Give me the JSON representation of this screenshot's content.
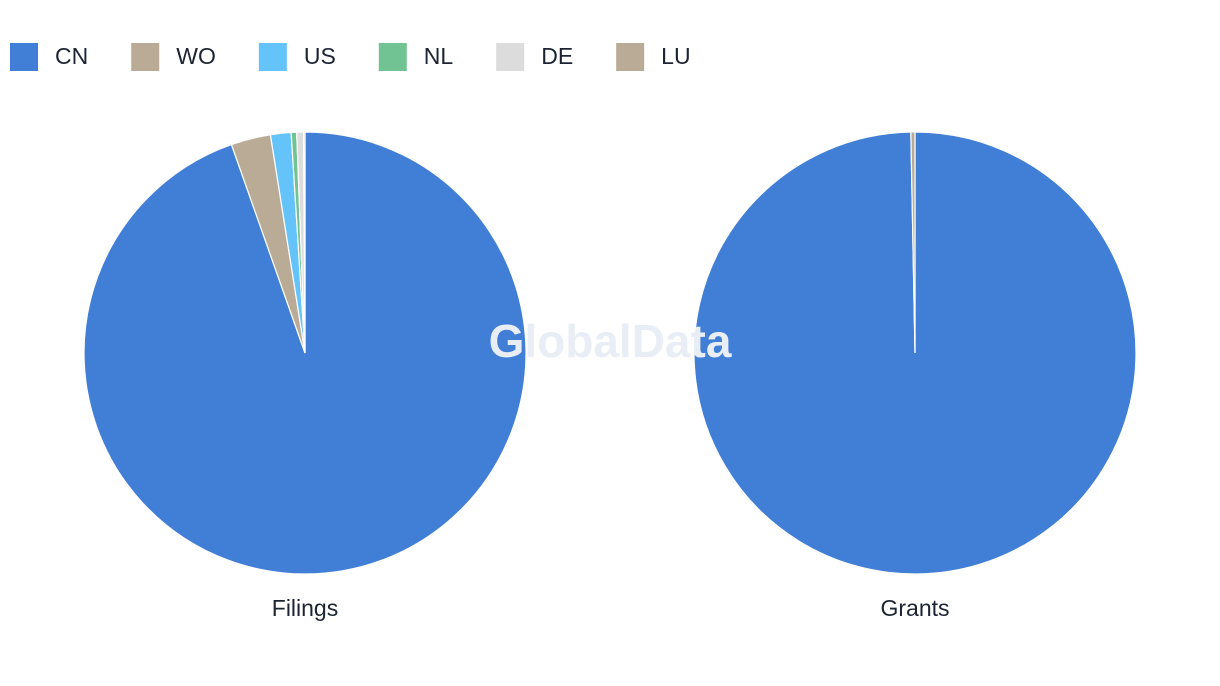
{
  "watermark": "GlobalData",
  "chart_data": [
    {
      "type": "pie",
      "title": "Filings",
      "categories": [
        "CN",
        "WO",
        "US",
        "NL",
        "DE",
        "LU"
      ],
      "values": [
        94.6,
        2.9,
        1.5,
        0.4,
        0.5,
        0.1
      ],
      "colors": [
        "#417ed6",
        "#b9ab96",
        "#64c3f9",
        "#72c393",
        "#dcdcdc",
        "#b9ab96"
      ]
    },
    {
      "type": "pie",
      "title": "Grants",
      "categories": [
        "CN",
        "WO",
        "US",
        "NL",
        "DE",
        "LU"
      ],
      "values": [
        99.7,
        0.3,
        0,
        0,
        0,
        0
      ],
      "colors": [
        "#417ed6",
        "#b9ab96",
        "#64c3f9",
        "#72c393",
        "#dcdcdc",
        "#b9ab96"
      ]
    }
  ]
}
